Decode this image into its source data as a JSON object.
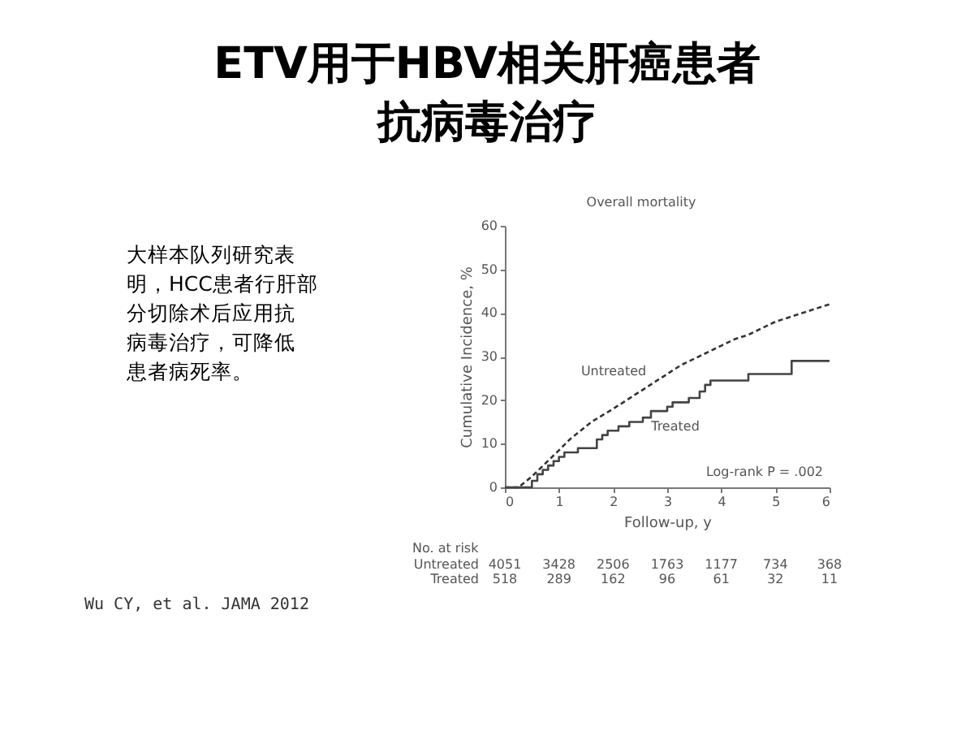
{
  "chart_data": {
    "type": "line",
    "title": "ETV用于HBV相关肝癌患者抗病毒治疗",
    "subtitle": "Overall mortality",
    "xlabel": "Follow-up, y",
    "ylabel": "Cumulative Incidence, %",
    "xlim": [
      0,
      6
    ],
    "xticks": [
      0,
      1,
      2,
      3,
      4,
      5,
      6
    ],
    "ylim": [
      0,
      60
    ],
    "yticks": [
      0,
      10,
      20,
      30,
      40,
      50,
      60
    ],
    "grid": false,
    "legend": false,
    "marker": "none",
    "series": [
      {
        "name": "Untreated",
        "type": "line",
        "line_style": "dashed",
        "color": "#333333",
        "x": [
          0,
          0.25,
          0.5,
          0.75,
          1.0,
          1.2,
          1.4,
          1.6,
          1.8,
          2.0,
          2.25,
          2.5,
          2.75,
          3.0,
          3.25,
          3.5,
          3.75,
          4.0,
          4.25,
          4.5,
          4.75,
          5.0,
          5.25,
          5.5,
          5.75,
          6.0
        ],
        "values": [
          0,
          0,
          2.5,
          5.5,
          8.5,
          11,
          13,
          15,
          16.5,
          18,
          20,
          22,
          24,
          26,
          28,
          29.5,
          31,
          32.5,
          34,
          35,
          36.5,
          38,
          39,
          40,
          41,
          42
        ]
      },
      {
        "name": "Treated",
        "type": "step",
        "line_style": "solid",
        "color": "#444444",
        "x": [
          0,
          0.4,
          0.5,
          0.6,
          0.7,
          0.8,
          0.9,
          1.0,
          1.1,
          1.35,
          1.65,
          1.7,
          1.8,
          1.9,
          2.1,
          2.3,
          2.55,
          2.7,
          3.0,
          3.1,
          3.4,
          3.6,
          3.7,
          3.8,
          4.5,
          5.3,
          6.0
        ],
        "values": [
          0,
          0,
          1.5,
          3,
          4,
          5,
          6,
          7,
          8,
          9,
          9,
          11,
          12,
          13,
          14,
          15,
          16,
          17.5,
          18.5,
          19.5,
          20.5,
          22,
          23.5,
          24.5,
          26,
          29,
          29
        ]
      }
    ],
    "annotations": [
      "大样本队列研究表明，HCC患者行肝部分切除术后应用抗病毒治疗，可降低患者病死率。",
      "Log-rank P = .002",
      "No. at risk",
      "Untreated 4051 3428 2506 1763 1177 734 368",
      "Treated 518 289 162 96 61 32 11",
      "Wu CY, et al. JAMA 2012"
    ]
  }
}
